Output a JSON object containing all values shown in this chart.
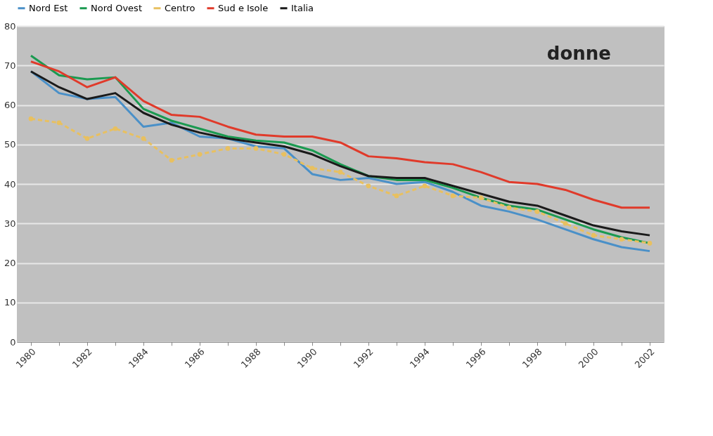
{
  "chart_data": {
    "type": "line",
    "categories": [
      "1980",
      null,
      "1982",
      null,
      "1984",
      null,
      "1986",
      null,
      "1988",
      null,
      "1990",
      null,
      "1992",
      null,
      "1994",
      null,
      "1996",
      null,
      "1998",
      null,
      "2000",
      null,
      "2002"
    ],
    "series": [
      {
        "name": "Nord Est",
        "color": "#4a90c8",
        "values": [
          68.5,
          63,
          61.5,
          62,
          54.5,
          55.5,
          52,
          51.5,
          49.5,
          49,
          42.5,
          41,
          41.5,
          40,
          40.5,
          38,
          34.5,
          33,
          31,
          28.5,
          26,
          24,
          23
        ]
      },
      {
        "name": "Nord Ovest",
        "color": "#1a9a50",
        "values": [
          72.5,
          67.5,
          66.5,
          67,
          59,
          56,
          54,
          52,
          51,
          50.5,
          48.5,
          45,
          42,
          41,
          41,
          39,
          36.5,
          34.5,
          33.5,
          31,
          28.5,
          26.5,
          25
        ]
      },
      {
        "name": "Centro",
        "color": "#e8c060",
        "line_style": "dashed",
        "marker": "circle",
        "values": [
          56.5,
          55.5,
          51.5,
          54,
          51.5,
          46,
          47.5,
          49,
          49,
          47.5,
          44,
          43,
          39.5,
          37,
          39.5,
          37,
          36.5,
          34,
          33,
          30,
          27,
          26,
          25
        ]
      },
      {
        "name": "Sud e Isole",
        "color": "#e03a2a",
        "values": [
          71,
          68.5,
          64.5,
          67,
          61,
          57.5,
          57,
          54.5,
          52.5,
          52,
          52,
          50.5,
          47,
          46.5,
          45.5,
          45,
          43,
          40.5,
          40,
          38.5,
          36,
          34,
          34
        ]
      },
      {
        "name": "Italia",
        "color": "#1a1a1a",
        "values": [
          68.5,
          64.5,
          61.5,
          63,
          58,
          55,
          53,
          51.5,
          50.5,
          49.5,
          47.5,
          44.5,
          42,
          41.5,
          41.5,
          39.5,
          37.5,
          35.5,
          34.5,
          32,
          29.5,
          28,
          27
        ]
      }
    ],
    "ylim": [
      0,
      80
    ],
    "yticks": [
      0,
      10,
      20,
      30,
      40,
      50,
      60,
      70,
      80
    ],
    "grid": "y",
    "legend": "top",
    "annotations": [
      "donne"
    ]
  }
}
